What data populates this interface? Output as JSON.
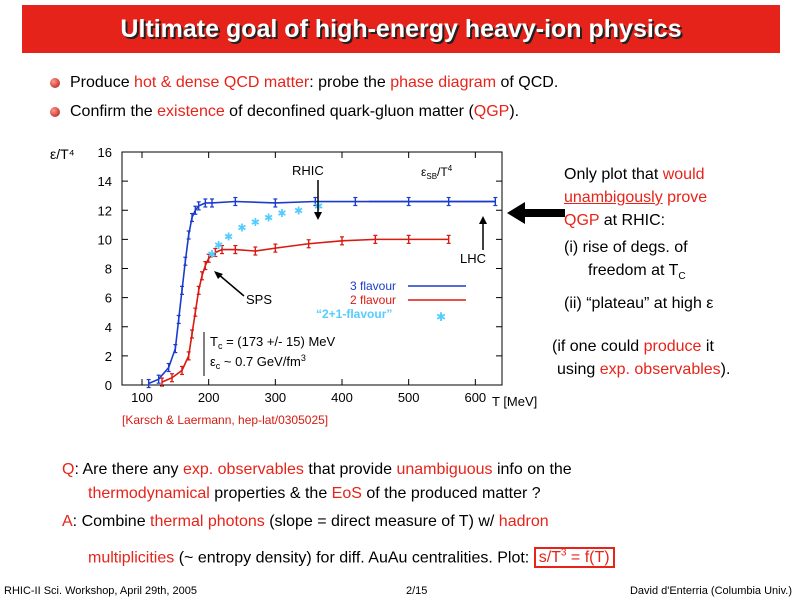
{
  "title": "Ultimate goal of high-energy heavy-ion physics",
  "bullets": [
    {
      "pre": "Produce ",
      "hl1": "hot & dense QCD matter",
      "mid": ": probe the ",
      "hl2": "phase diagram",
      "post": " of QCD."
    },
    {
      "pre": "Confirm the ",
      "hl1": "existence",
      "mid": " of deconfined quark-gluon matter (",
      "hl2": "QGP",
      "post": ")."
    }
  ],
  "right": {
    "l1a": "Only plot that ",
    "l1b": "would",
    "l2a": "unambigously",
    "l2b": " prove",
    "l3a": "QGP",
    "l3b": " at RHIC:",
    "i1a": "(i) rise of degs. of",
    "i1b": "freedom at T",
    "i1sub": "C",
    "i2": "(ii) “plateau” at high ε"
  },
  "paren": {
    "a": "(if one could ",
    "b": "produce",
    "c": " it",
    "d": "using ",
    "e": "exp. observables",
    "f": ")."
  },
  "reference": "[Karsch & Laermann, hep-lat/0305025]",
  "qa": {
    "q_label": "Q",
    "q1": ": Are there any ",
    "q2": "exp. observables",
    "q3": " that provide ",
    "q4": "unambiguous",
    "q5": " info on the",
    "q6": "thermodynamical",
    "q7": " properties & the ",
    "q8": "EoS",
    "q9": " of the produced matter ?",
    "a_label": "A",
    "a1": ": Combine ",
    "a2": "thermal photons",
    "a3": " (slope = direct measure of T) w/ ",
    "a4": "hadron",
    "a5": "multiplicities",
    "a6": " (~ entropy density) for diff. AuAu centralities. Plot: ",
    "a7": "s/T",
    "a7sup": "3",
    "a8": " = f(T)"
  },
  "footer": {
    "left": "RHIC-II Sci. Workshop, April 29th, 2005",
    "center": "2/15",
    "right": "David d'Enterria (Columbia Univ.)"
  },
  "chart_data": {
    "type": "line",
    "ylabel": "ε/T⁴",
    "xlabel": "T [MeV]",
    "xlim": [
      70,
      640
    ],
    "ylim": [
      0,
      16
    ],
    "xticks": [
      100,
      200,
      300,
      400,
      500,
      600
    ],
    "yticks": [
      0,
      2,
      4,
      6,
      8,
      10,
      12,
      14,
      16
    ],
    "annotations": {
      "rhic": "RHIC",
      "lhc": "LHC",
      "sps": "SPS",
      "sb_main": "ε",
      "sb_sub": "SB",
      "sb_post": "/T",
      "sb_sup": "4",
      "tc_main": "T",
      "tc_sub": "c",
      "tc_val": " = (173 +/- 15) MeV",
      "ec_main": "ε",
      "ec_sub": "c",
      "ec_val": " ~ 0.7 GeV/fm",
      "ec_sup": "3"
    },
    "series": [
      {
        "name": "3 flavour",
        "color": "#1a3ccc",
        "x": [
          110,
          125,
          140,
          150,
          155,
          160,
          165,
          170,
          175,
          180,
          185,
          195,
          205,
          240,
          300,
          360,
          420,
          500,
          560,
          630
        ],
        "y": [
          0.1,
          0.4,
          1.2,
          2.5,
          4.5,
          6.5,
          8.5,
          10.3,
          11.5,
          12.0,
          12.3,
          12.5,
          12.5,
          12.6,
          12.5,
          12.6,
          12.6,
          12.6,
          12.6,
          12.6
        ]
      },
      {
        "name": "2 flavour",
        "color": "#d81a10",
        "x": [
          130,
          145,
          160,
          170,
          175,
          180,
          185,
          190,
          195,
          200,
          210,
          220,
          240,
          270,
          300,
          350,
          400,
          450,
          500,
          560
        ],
        "y": [
          0.2,
          0.5,
          1.0,
          2.0,
          3.5,
          5.0,
          6.5,
          7.5,
          8.2,
          8.7,
          9.1,
          9.3,
          9.3,
          9.2,
          9.4,
          9.7,
          9.9,
          10.0,
          10.0,
          10.0
        ]
      },
      {
        "name": "“2+1-flavour”",
        "color": "#55ccff",
        "x": [
          205,
          215,
          230,
          250,
          270,
          290,
          310,
          335,
          365
        ],
        "y": [
          9.0,
          9.6,
          10.2,
          10.8,
          11.2,
          11.5,
          11.8,
          12.0,
          12.3
        ]
      }
    ],
    "sb_limit": {
      "value": 12.6,
      "from": 440,
      "to": 630
    }
  }
}
